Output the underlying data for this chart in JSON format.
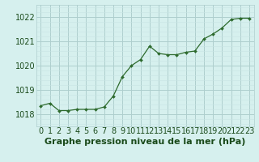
{
  "x": [
    0,
    1,
    2,
    3,
    4,
    5,
    6,
    7,
    8,
    9,
    10,
    11,
    12,
    13,
    14,
    15,
    16,
    17,
    18,
    19,
    20,
    21,
    22,
    23
  ],
  "y": [
    1018.35,
    1018.45,
    1018.15,
    1018.15,
    1018.2,
    1018.2,
    1018.2,
    1018.3,
    1018.75,
    1019.55,
    1020.0,
    1020.25,
    1020.8,
    1020.5,
    1020.45,
    1020.45,
    1020.55,
    1020.6,
    1021.1,
    1021.3,
    1021.55,
    1021.9,
    1021.95,
    1021.95
  ],
  "ylim": [
    1017.5,
    1022.5
  ],
  "yticks": [
    1018,
    1019,
    1020,
    1021,
    1022
  ],
  "xlim": [
    -0.5,
    23.5
  ],
  "xticks": [
    0,
    1,
    2,
    3,
    4,
    5,
    6,
    7,
    8,
    9,
    10,
    11,
    12,
    13,
    14,
    15,
    16,
    17,
    18,
    19,
    20,
    21,
    22,
    23
  ],
  "line_color": "#2d6a2d",
  "marker_color": "#2d6a2d",
  "bg_color": "#d6f0ee",
  "grid_major_color": "#aecece",
  "grid_minor_color": "#c8e4e4",
  "xlabel": "Graphe pression niveau de la mer (hPa)",
  "xlabel_color": "#1a4a1a",
  "xlabel_fontsize": 8,
  "tick_fontsize": 7,
  "tick_color": "#1a4a1a"
}
